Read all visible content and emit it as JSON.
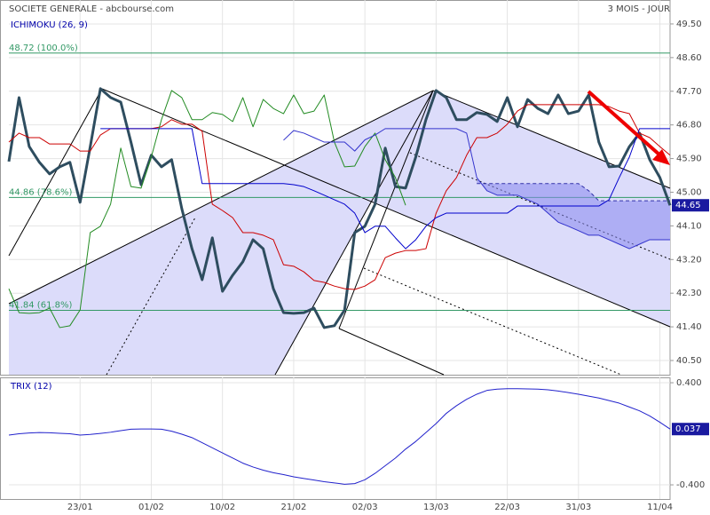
{
  "chart_data": [
    {
      "type": "line",
      "title": "SOCIETE GENERALE - abcbourse.com",
      "subtitle": "3 MOIS - JOUR",
      "indicator": "ICHIMOKU (26, 9)",
      "categories": [
        null,
        null,
        null,
        null,
        null,
        null,
        null,
        "23/01",
        null,
        null,
        null,
        null,
        null,
        null,
        "01/02",
        null,
        null,
        null,
        null,
        null,
        null,
        "10/02",
        null,
        null,
        null,
        null,
        null,
        null,
        "21/02",
        null,
        null,
        null,
        null,
        null,
        null,
        "02/03",
        null,
        null,
        null,
        null,
        null,
        null,
        "13/03",
        null,
        null,
        null,
        null,
        null,
        null,
        "22/03",
        null,
        null,
        null,
        null,
        null,
        null,
        "31/03",
        null,
        null,
        null,
        null,
        null,
        null,
        null,
        "11/04",
        null
      ],
      "ylim": [
        40.12,
        50.14
      ],
      "yticks": [
        {
          "value": 49.5,
          "label": "49.50"
        },
        {
          "value": 48.6,
          "label": "48.60"
        },
        {
          "value": 47.7,
          "label": "47.70"
        },
        {
          "value": 46.8,
          "label": "46.80"
        },
        {
          "value": 45.9,
          "label": "45.90"
        },
        {
          "value": 45,
          "label": "45.00"
        },
        {
          "value": 44.1,
          "label": "44.10"
        },
        {
          "value": 43.2,
          "label": "43.20"
        },
        {
          "value": 42.3,
          "label": "42.30"
        },
        {
          "value": 41.4,
          "label": "41.40"
        },
        {
          "value": 40.5,
          "label": "40.50"
        }
      ],
      "grid": true,
      "levels": [
        {
          "value": 48.72,
          "label": "48.72  (100.0%)"
        },
        {
          "value": 44.86,
          "label": "44.86  (78.6%)"
        },
        {
          "value": 41.84,
          "label": "41.84  (61.8%)"
        }
      ],
      "level_color": "#339966",
      "series": [
        {
          "color": "#2e4d5f",
          "values": [
            45.82,
            47.53,
            46.22,
            45.8,
            45.49,
            45.68,
            45.8,
            44.73,
            46.22,
            47.77,
            47.53,
            47.41,
            46.34,
            45.2,
            45.99,
            45.68,
            45.87,
            44.56,
            43.49,
            42.66,
            43.78,
            42.35,
            42.78,
            43.14,
            43.73,
            43.49,
            42.42,
            41.78,
            41.76,
            41.78,
            41.9,
            41.38,
            41.43,
            41.85,
            43.92,
            44.09,
            44.68,
            46.18,
            45.15,
            45.11,
            45.94,
            46.94,
            47.72,
            47.53,
            46.94,
            46.94,
            47.13,
            47.08,
            46.89,
            47.53,
            46.75,
            47.48,
            47.24,
            47.1,
            47.6,
            47.1,
            47.17,
            47.6,
            46.34,
            45.68,
            45.7,
            46.22,
            46.58,
            45.87,
            45.39,
            44.65
          ]
        },
        {
          "color": "#cc0000",
          "values": [
            46.34,
            46.58,
            46.46,
            46.46,
            46.29,
            46.29,
            46.29,
            46.1,
            46.1,
            46.53,
            46.7,
            46.7,
            46.7,
            46.7,
            46.7,
            46.75,
            46.94,
            46.82,
            46.82,
            46.63,
            44.68,
            44.51,
            44.32,
            43.92,
            43.92,
            43.85,
            43.73,
            43.06,
            43.02,
            42.87,
            42.64,
            42.59,
            42.49,
            42.42,
            42.4,
            42.49,
            42.66,
            43.25,
            43.37,
            43.44,
            43.44,
            43.49,
            44.44,
            45.04,
            45.39,
            45.99,
            46.46,
            46.46,
            46.58,
            46.82,
            47.17,
            47.34,
            47.34,
            47.34,
            47.34,
            47.34,
            47.34,
            47.34,
            47.34,
            47.29,
            47.17,
            47.1,
            46.58,
            46.46,
            46.22,
            45.99
          ]
        },
        {
          "color": "#0000cc",
          "values": [
            null,
            null,
            null,
            null,
            null,
            null,
            null,
            null,
            null,
            46.7,
            46.7,
            46.7,
            46.7,
            46.7,
            46.7,
            46.7,
            46.7,
            46.7,
            46.7,
            45.23,
            45.23,
            45.23,
            45.23,
            45.23,
            45.23,
            45.23,
            45.23,
            45.23,
            45.2,
            45.15,
            45.04,
            44.92,
            44.8,
            44.68,
            44.44,
            43.92,
            44.09,
            44.09,
            43.78,
            43.49,
            43.73,
            44.09,
            44.32,
            44.44,
            44.44,
            44.44,
            44.44,
            44.44,
            44.44,
            44.44,
            44.63,
            44.63,
            44.63,
            44.63,
            44.63,
            44.63,
            44.63,
            44.63,
            44.63,
            44.8,
            45.39,
            45.94,
            46.7,
            46.7,
            46.7,
            46.7
          ]
        },
        {
          "color": "#228b22",
          "values": [
            42.42,
            41.78,
            41.76,
            41.78,
            41.9,
            41.38,
            41.43,
            41.85,
            43.92,
            44.09,
            44.68,
            46.18,
            45.15,
            45.11,
            45.94,
            46.94,
            47.72,
            47.53,
            46.94,
            46.94,
            47.13,
            47.08,
            46.89,
            47.53,
            46.75,
            47.48,
            47.24,
            47.1,
            47.6,
            47.1,
            47.17,
            47.6,
            46.34,
            45.68,
            45.7,
            46.22,
            46.58,
            45.87,
            45.39,
            44.65,
            null,
            null,
            null,
            null,
            null,
            null,
            null,
            null,
            null,
            null,
            null,
            null,
            null,
            null,
            null,
            null,
            null,
            null,
            null,
            null,
            null,
            null,
            null,
            null,
            null,
            null
          ]
        },
        {
          "color": "#3333aa",
          "dashed": true,
          "values": [
            null,
            null,
            null,
            null,
            null,
            null,
            null,
            null,
            null,
            null,
            null,
            null,
            null,
            null,
            null,
            null,
            null,
            null,
            null,
            null,
            null,
            null,
            null,
            null,
            null,
            null,
            null,
            null,
            null,
            null,
            null,
            null,
            null,
            null,
            null,
            null,
            null,
            null,
            null,
            null,
            null,
            null,
            null,
            null,
            null,
            null,
            45.23,
            45.23,
            45.23,
            45.23,
            45.23,
            45.23,
            45.23,
            45.23,
            45.23,
            45.23,
            45.23,
            45.04,
            44.77,
            44.77,
            44.77,
            44.77,
            44.77,
            44.77,
            44.77,
            44.77
          ]
        },
        {
          "color": "#3333cc",
          "values": [
            null,
            null,
            null,
            null,
            null,
            null,
            null,
            null,
            null,
            null,
            null,
            null,
            null,
            null,
            null,
            null,
            null,
            null,
            null,
            null,
            null,
            null,
            null,
            null,
            null,
            null,
            null,
            46.39,
            46.65,
            46.58,
            46.46,
            46.34,
            46.34,
            46.34,
            46.1,
            46.4,
            46.53,
            46.7,
            46.7,
            46.7,
            46.7,
            46.7,
            46.7,
            46.7,
            46.7,
            46.58,
            45.39,
            45.04,
            44.92,
            44.92,
            44.92,
            44.8,
            44.68,
            44.44,
            44.2,
            44.09,
            43.97,
            43.85,
            43.85,
            43.73,
            43.61,
            43.49,
            43.61,
            43.73,
            43.73,
            43.73
          ]
        }
      ],
      "cloud_color": "#8888ee"
    },
    {
      "type": "line",
      "title": "TRIX (12)",
      "ylim": [
        -0.511,
        0.442
      ],
      "yticks": [
        {
          "value": 0.4,
          "label": "0.400"
        },
        {
          "value": -0.4,
          "label": "-0.400"
        }
      ],
      "grid": true,
      "series": [
        {
          "color": "#2222cc",
          "values": [
            -0.01,
            0.0,
            0.006,
            0.01,
            0.008,
            0.004,
            0.0,
            -0.01,
            -0.005,
            0.003,
            0.012,
            0.025,
            0.036,
            0.038,
            0.038,
            0.036,
            0.02,
            -0.003,
            -0.03,
            -0.07,
            -0.11,
            -0.15,
            -0.19,
            -0.23,
            -0.26,
            -0.285,
            -0.305,
            -0.32,
            -0.337,
            -0.35,
            -0.362,
            -0.375,
            -0.385,
            -0.395,
            -0.39,
            -0.36,
            -0.31,
            -0.25,
            -0.19,
            -0.12,
            -0.06,
            0.01,
            0.08,
            0.16,
            0.22,
            0.27,
            0.31,
            0.34,
            0.35,
            0.353,
            0.353,
            0.352,
            0.35,
            0.345,
            0.335,
            0.323,
            0.31,
            0.295,
            0.28,
            0.26,
            0.24,
            0.21,
            0.18,
            0.14,
            0.09,
            0.037
          ]
        }
      ]
    }
  ]
}
